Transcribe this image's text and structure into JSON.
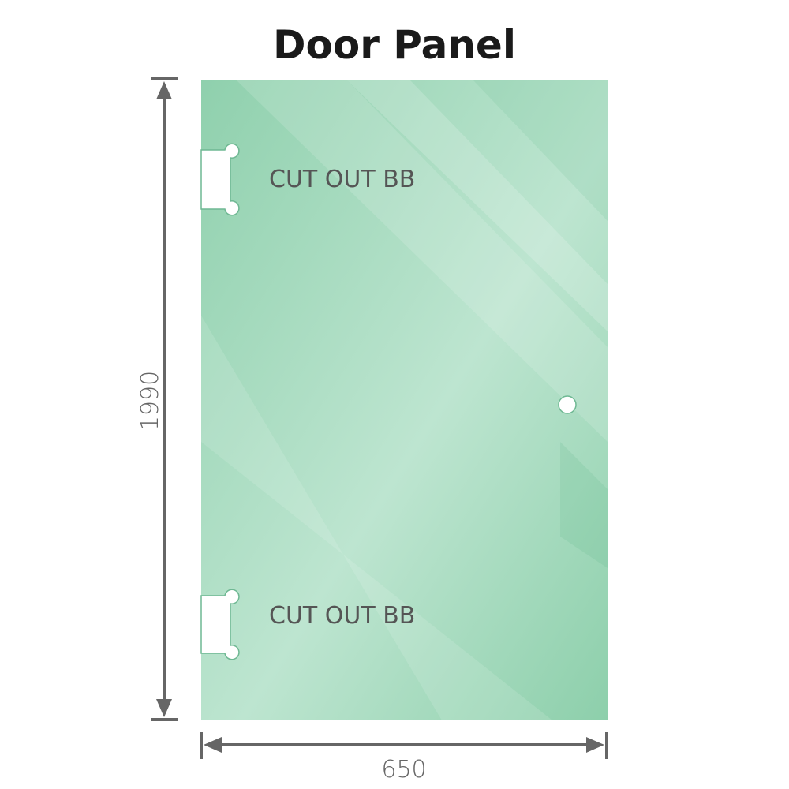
{
  "title": "Door Panel",
  "panel": {
    "color": "#86cca6",
    "cutouts": [
      {
        "label": "CUT OUT BB"
      },
      {
        "label": "CUT OUT BB"
      }
    ]
  },
  "dimensions": {
    "height": "1990",
    "width": "650",
    "color": "#666666"
  }
}
